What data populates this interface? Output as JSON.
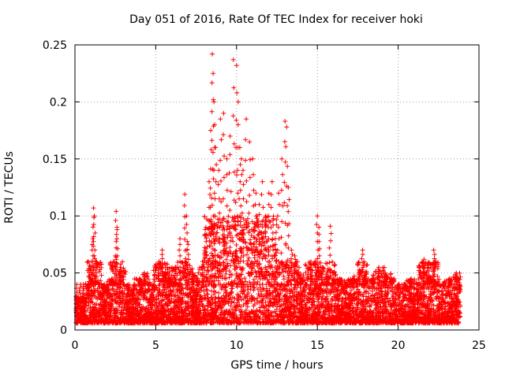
{
  "chart_data": {
    "type": "scatter",
    "title": "Day 051 of 2016, Rate Of TEC Index for receiver hoki",
    "xlabel": "GPS time / hours",
    "ylabel": "ROTI / TECUs",
    "xlim": [
      0,
      25
    ],
    "ylim": [
      0,
      0.25
    ],
    "x_ticks": [
      "0",
      "5",
      "10",
      "15",
      "20",
      "25"
    ],
    "y_ticks": [
      "0",
      "0.05",
      "0.1",
      "0.15",
      "0.2",
      "0.25"
    ],
    "grid": true,
    "marker": "+",
    "color": "#ff0000",
    "series": [
      {
        "x": [
          0.1,
          0.3,
          0.5,
          0.8,
          1.0,
          1.1,
          1.15,
          1.2,
          1.3,
          1.5,
          1.8,
          2.0,
          2.3,
          2.5,
          2.55,
          2.6,
          2.8,
          3.0,
          3.3,
          3.6,
          4.0,
          4.3,
          4.6,
          4.9,
          5.2,
          5.4,
          5.6,
          5.9,
          6.2,
          6.5,
          6.8,
          6.9,
          7.0,
          7.3,
          7.6,
          7.9,
          8.1,
          8.3,
          8.4,
          8.5,
          8.55,
          8.6,
          8.7,
          8.9,
          9.0,
          9.2,
          9.4,
          9.6,
          9.8,
          10.0,
          10.1,
          10.2,
          10.3,
          10.4,
          10.6,
          10.8,
          11.0,
          11.2,
          11.4,
          11.6,
          11.8,
          12.0,
          12.2,
          12.4,
          12.6,
          12.8,
          13.0,
          13.1,
          13.2,
          13.4,
          13.6,
          13.8,
          14.0,
          14.3,
          14.6,
          14.9,
          15.0,
          15.1,
          15.3,
          15.6,
          15.8,
          16.0,
          16.4,
          16.8,
          17.2,
          17.6,
          17.8,
          18.0,
          18.4,
          18.8,
          19.2,
          19.6,
          20.0,
          20.4,
          20.8,
          21.2,
          21.6,
          21.8,
          22.0,
          22.2,
          22.4,
          22.8,
          23.2,
          23.6,
          23.8
        ],
        "y": [
          0.012,
          0.018,
          0.025,
          0.03,
          0.045,
          0.08,
          0.107,
          0.1,
          0.06,
          0.04,
          0.035,
          0.03,
          0.045,
          0.065,
          0.104,
          0.09,
          0.055,
          0.04,
          0.035,
          0.03,
          0.045,
          0.05,
          0.04,
          0.035,
          0.06,
          0.07,
          0.05,
          0.045,
          0.055,
          0.08,
          0.119,
          0.1,
          0.075,
          0.05,
          0.04,
          0.06,
          0.09,
          0.13,
          0.175,
          0.242,
          0.225,
          0.2,
          0.16,
          0.14,
          0.185,
          0.19,
          0.15,
          0.17,
          0.237,
          0.232,
          0.2,
          0.16,
          0.15,
          0.14,
          0.185,
          0.165,
          0.15,
          0.12,
          0.11,
          0.13,
          0.1,
          0.12,
          0.13,
          0.08,
          0.12,
          0.15,
          0.183,
          0.178,
          0.125,
          0.07,
          0.065,
          0.05,
          0.045,
          0.04,
          0.06,
          0.06,
          0.1,
          0.09,
          0.055,
          0.05,
          0.091,
          0.045,
          0.045,
          0.04,
          0.045,
          0.05,
          0.07,
          0.045,
          0.045,
          0.055,
          0.05,
          0.045,
          0.035,
          0.04,
          0.045,
          0.04,
          0.062,
          0.052,
          0.045,
          0.07,
          0.04,
          0.04,
          0.045,
          0.05,
          0.035
        ]
      }
    ]
  }
}
